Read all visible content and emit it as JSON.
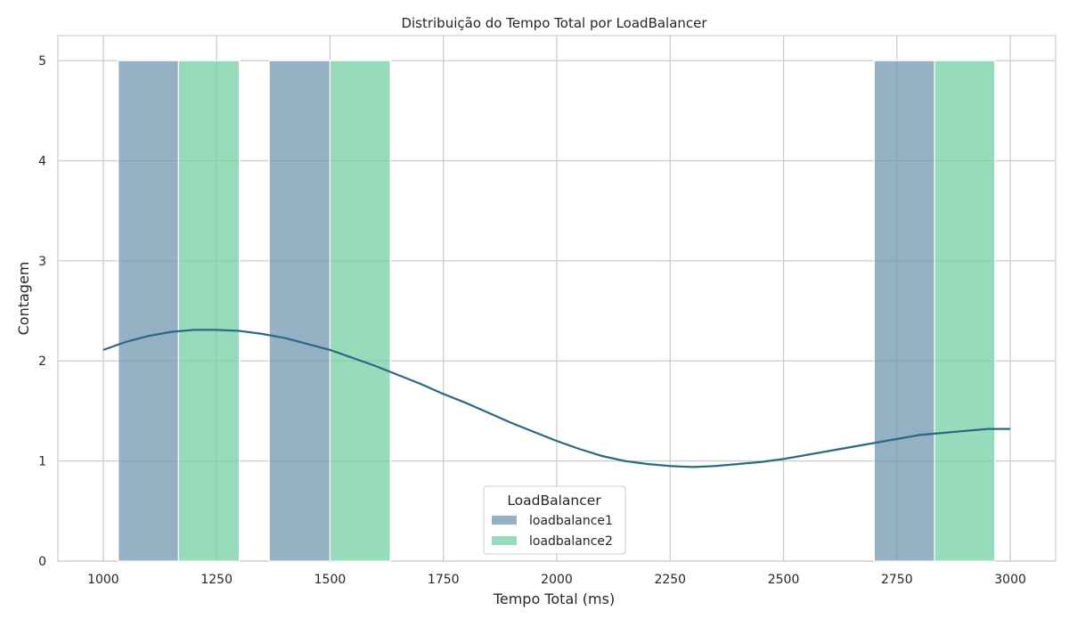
{
  "chart_data": {
    "type": "bar",
    "title": "Distribuição do Tempo Total por LoadBalancer",
    "xlabel": "Tempo Total (ms)",
    "ylabel": "Contagem",
    "xlim": [
      900,
      3100
    ],
    "ylim": [
      0,
      5.25
    ],
    "xticks": [
      1000,
      1250,
      1500,
      1750,
      2000,
      2250,
      2500,
      2750,
      3000
    ],
    "yticks": [
      0,
      1,
      2,
      3,
      4,
      5
    ],
    "grid": true,
    "legend": {
      "title": "LoadBalancer",
      "placement": "lower-center"
    },
    "series": [
      {
        "name": "loadbalance1",
        "color": "#6e93ad",
        "bins": [
          {
            "x0": 1033,
            "x1": 1166,
            "count": 5
          },
          {
            "x0": 1366,
            "x1": 1500,
            "count": 5
          },
          {
            "x0": 2700,
            "x1": 2833,
            "count": 5
          }
        ]
      },
      {
        "name": "loadbalance2",
        "color": "#6fcf9f",
        "bins": [
          {
            "x0": 1166,
            "x1": 1300,
            "count": 5
          },
          {
            "x0": 1500,
            "x1": 1633,
            "count": 5
          },
          {
            "x0": 2833,
            "x1": 2966,
            "count": 5
          }
        ]
      }
    ],
    "kde": {
      "color": "#2a6983",
      "points": [
        [
          1000,
          2.11
        ],
        [
          1050,
          2.19
        ],
        [
          1100,
          2.25
        ],
        [
          1150,
          2.29
        ],
        [
          1200,
          2.31
        ],
        [
          1250,
          2.31
        ],
        [
          1300,
          2.3
        ],
        [
          1350,
          2.27
        ],
        [
          1400,
          2.23
        ],
        [
          1450,
          2.17
        ],
        [
          1500,
          2.11
        ],
        [
          1550,
          2.03
        ],
        [
          1600,
          1.95
        ],
        [
          1650,
          1.86
        ],
        [
          1700,
          1.77
        ],
        [
          1750,
          1.67
        ],
        [
          1800,
          1.58
        ],
        [
          1850,
          1.48
        ],
        [
          1900,
          1.38
        ],
        [
          1950,
          1.29
        ],
        [
          2000,
          1.2
        ],
        [
          2050,
          1.12
        ],
        [
          2100,
          1.05
        ],
        [
          2150,
          1.0
        ],
        [
          2200,
          0.97
        ],
        [
          2250,
          0.95
        ],
        [
          2300,
          0.94
        ],
        [
          2350,
          0.95
        ],
        [
          2400,
          0.97
        ],
        [
          2450,
          0.99
        ],
        [
          2500,
          1.02
        ],
        [
          2550,
          1.06
        ],
        [
          2600,
          1.1
        ],
        [
          2650,
          1.14
        ],
        [
          2700,
          1.18
        ],
        [
          2750,
          1.22
        ],
        [
          2800,
          1.26
        ],
        [
          2850,
          1.28
        ],
        [
          2900,
          1.3
        ],
        [
          2950,
          1.32
        ],
        [
          3000,
          1.32
        ]
      ]
    }
  }
}
